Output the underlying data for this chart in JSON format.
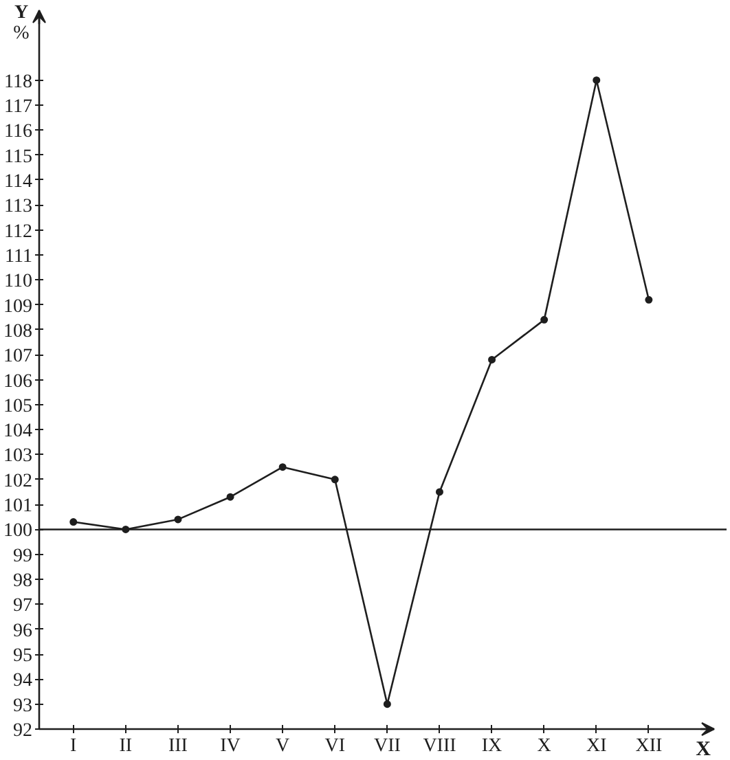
{
  "chart_data": {
    "type": "line",
    "xlabel": "X",
    "ylabel": "Y\n%",
    "categories": [
      "I",
      "II",
      "III",
      "IV",
      "V",
      "VI",
      "VII",
      "VIII",
      "IX",
      "X",
      "XI",
      "XII"
    ],
    "series": [
      {
        "color": "#1e1e1e",
        "values": [
          100.3,
          100.0,
          100.4,
          101.3,
          102.5,
          102.0,
          93.0,
          101.5,
          106.8,
          108.4,
          118.0,
          109.2
        ]
      }
    ],
    "ylim": [
      92,
      120.8
    ],
    "yticks": [
      92,
      93,
      94,
      95,
      96,
      97,
      98,
      99,
      100,
      101,
      102,
      103,
      104,
      105,
      106,
      107,
      108,
      109,
      110,
      111,
      112,
      113,
      114,
      115,
      116,
      117,
      118
    ],
    "ref_lines": [
      {
        "axis": "y",
        "value": 100,
        "color": "#1e1e1e"
      }
    ],
    "grid": false,
    "marker": "circle",
    "line_style": "solid"
  }
}
